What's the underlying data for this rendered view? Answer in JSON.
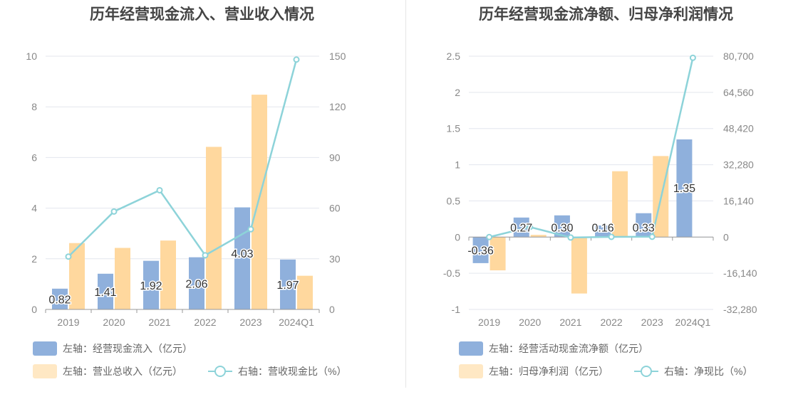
{
  "colors": {
    "bar_primary": "#8fb0dc",
    "bar_secondary": "#ffd89e",
    "line": "#8dd3d9"
  },
  "chart_data": [
    {
      "type": "bar",
      "title": "历年经营现金流入、营业收入情况",
      "categories": [
        "2019",
        "2020",
        "2021",
        "2022",
        "2023",
        "2024Q1"
      ],
      "y_left": {
        "ylim": [
          0,
          10
        ],
        "ticks": [
          "0",
          "2",
          "4",
          "6",
          "8",
          "10"
        ]
      },
      "y_right": {
        "ylim": [
          0,
          150
        ],
        "ticks": [
          "0",
          "30",
          "60",
          "90",
          "120",
          "150"
        ]
      },
      "series": [
        {
          "name": "左轴：经营现金流入（亿元）",
          "axis": "left",
          "type": "bar",
          "values": [
            0.82,
            1.41,
            1.92,
            2.06,
            4.03,
            1.97
          ],
          "labels": [
            "0.82",
            "1.41",
            "1.92",
            "2.06",
            "4.03",
            "1.97"
          ]
        },
        {
          "name": "左轴：营业总收入（亿元）",
          "axis": "left",
          "type": "bar",
          "values": [
            2.62,
            2.43,
            2.72,
            6.42,
            8.48,
            1.33
          ]
        },
        {
          "name": "右轴：营收现金比（%）",
          "axis": "right",
          "type": "line",
          "values": [
            31.3,
            58.0,
            70.6,
            32.1,
            47.5,
            148.0
          ]
        }
      ],
      "grid": true,
      "legend_position": "bottom-left"
    },
    {
      "type": "bar",
      "title": "历年经营现金流净额、归母净利润情况",
      "categories": [
        "2019",
        "2020",
        "2021",
        "2022",
        "2023",
        "2024Q1"
      ],
      "y_left": {
        "ylim": [
          -1,
          2.5
        ],
        "ticks": [
          "-1",
          "-0.5",
          "0",
          "0.5",
          "1",
          "1.5",
          "2",
          "2.5"
        ]
      },
      "y_right": {
        "ylim": [
          -32280,
          80700
        ],
        "ticks": [
          "-32,280",
          "-16,140",
          "0",
          "16,140",
          "32,280",
          "48,420",
          "64,560",
          "80,700"
        ]
      },
      "series": [
        {
          "name": "左轴：经营活动现金流净额（亿元）",
          "axis": "left",
          "type": "bar",
          "values": [
            -0.36,
            0.27,
            0.3,
            0.16,
            0.33,
            1.35
          ],
          "labels": [
            "-0.36",
            "0.27",
            "0.30",
            "0.16",
            "0.33",
            "1.35"
          ]
        },
        {
          "name": "左轴：归母净利润（亿元）",
          "axis": "left",
          "type": "bar",
          "values": [
            -0.46,
            0.03,
            -0.78,
            0.91,
            1.12,
            0.0
          ]
        },
        {
          "name": "右轴：净现比（%）",
          "axis": "right",
          "type": "line",
          "values": [
            10,
            4500,
            -200,
            100,
            150,
            80000
          ]
        }
      ],
      "grid": true,
      "legend_position": "bottom-left"
    }
  ]
}
